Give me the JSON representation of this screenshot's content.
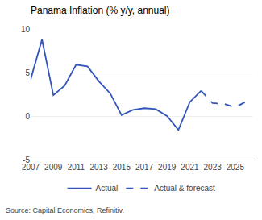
{
  "chart_data": {
    "type": "line",
    "title": "Panama Inflation (% y/y, annual)",
    "source": "Source: Capital Economics, Refinitiv.",
    "series": [
      {
        "name": "Actual",
        "color": "#3355bb",
        "line_style": "solid",
        "x": [
          2007,
          2008,
          2009,
          2010,
          2011,
          2012,
          2013,
          2014,
          2015,
          2016,
          2017,
          2018,
          2019,
          2020,
          2021,
          2022
        ],
        "values": [
          4.2,
          8.8,
          2.4,
          3.5,
          5.9,
          5.7,
          4.0,
          2.6,
          0.1,
          0.7,
          0.9,
          0.8,
          0.0,
          -1.6,
          1.6,
          2.9
        ]
      },
      {
        "name": "Actual & forecast",
        "color": "#3355bb",
        "line_style": "dashed",
        "x": [
          2022,
          2023,
          2024,
          2025,
          2026
        ],
        "values": [
          2.9,
          1.5,
          1.4,
          1.0,
          1.7
        ]
      }
    ],
    "xlim": [
      2007,
      2026.5
    ],
    "xticks": [
      2007,
      2009,
      2011,
      2013,
      2015,
      2017,
      2019,
      2021,
      2023,
      2025
    ],
    "ylim": [
      -5,
      10
    ],
    "yticks": [
      -5,
      0,
      5,
      10
    ],
    "grid": "y",
    "legend": "bottom"
  }
}
